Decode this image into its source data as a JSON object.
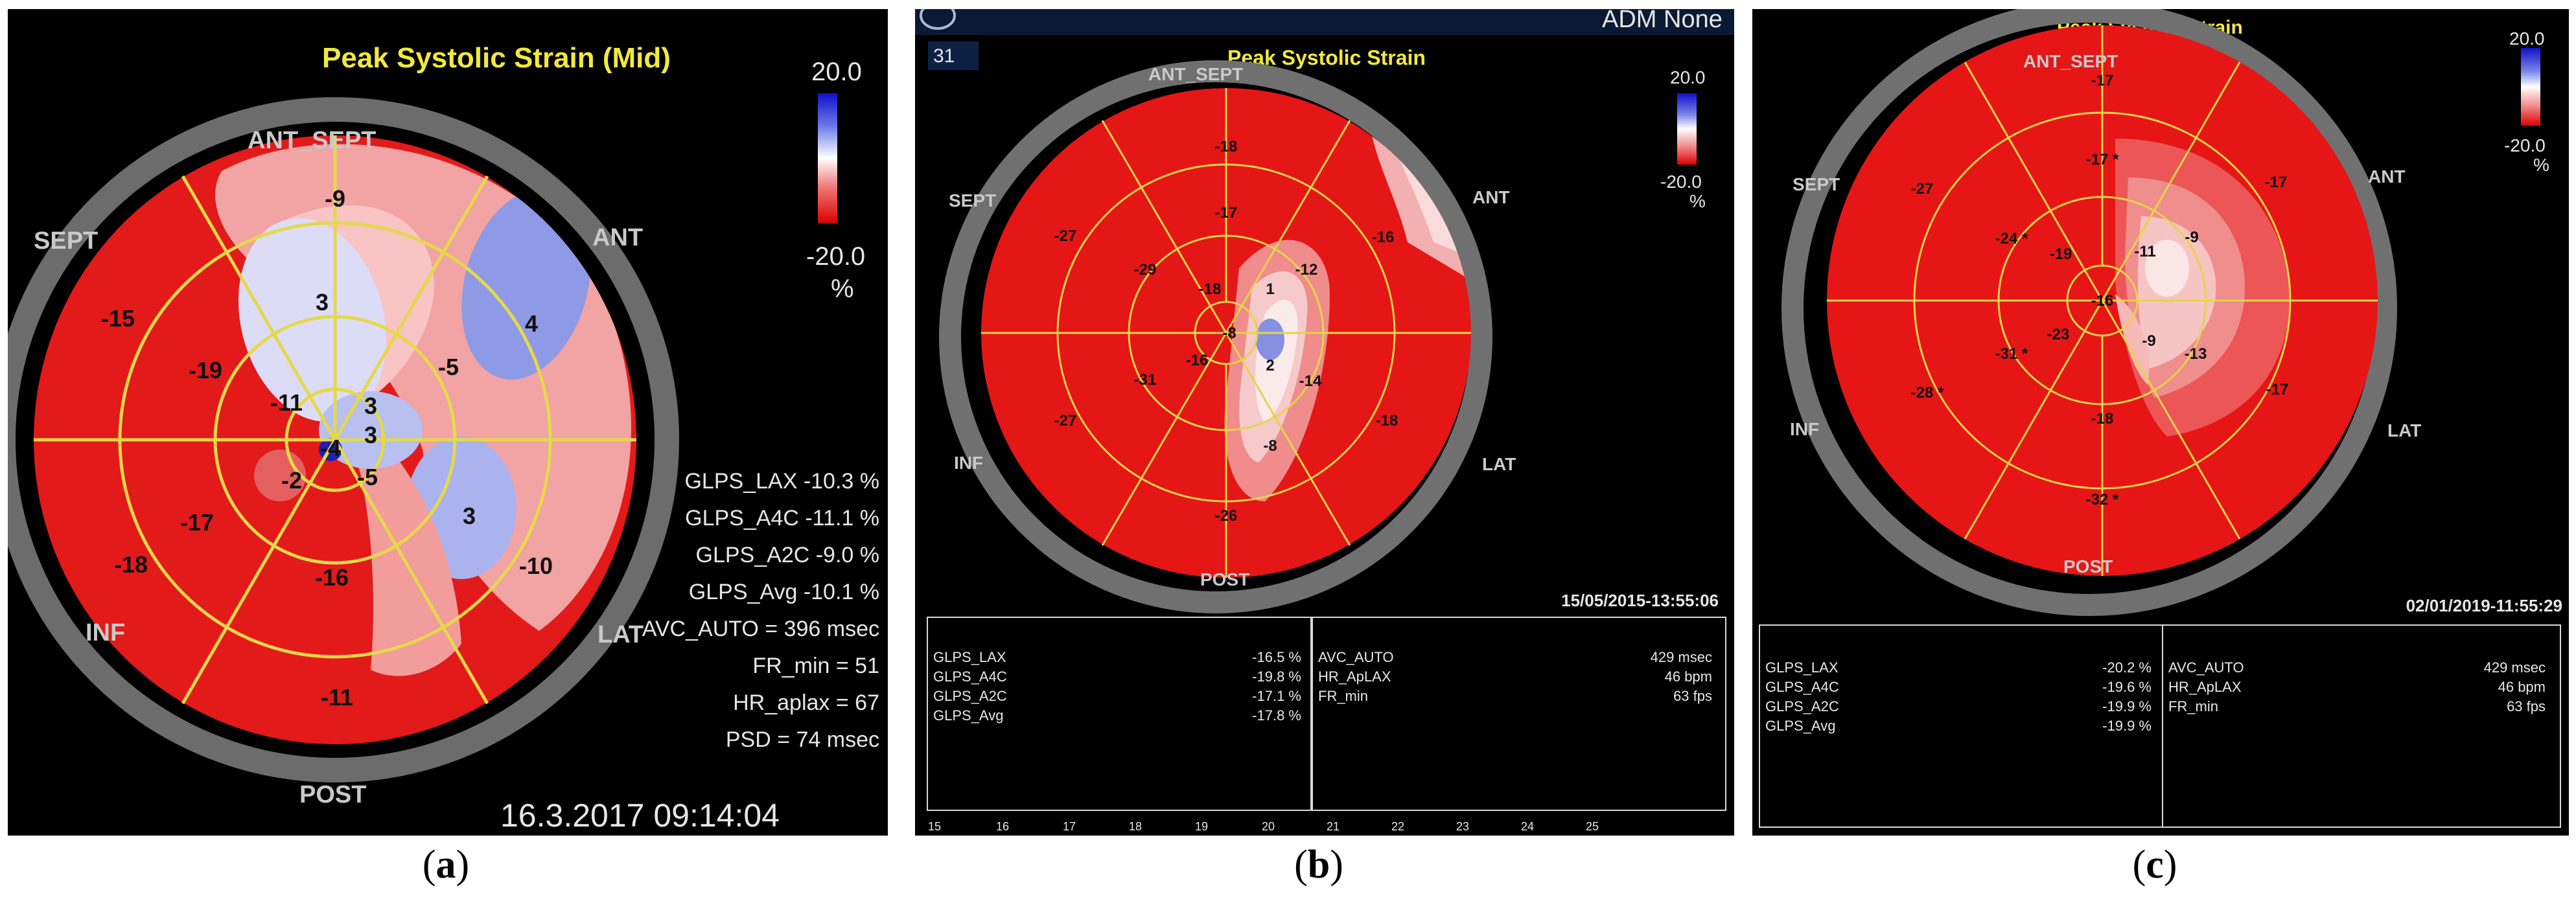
{
  "panels": {
    "a": {
      "caption_letter": "a",
      "title": "Peak Systolic Strain (Mid)",
      "scale_max": "20.0",
      "scale_min": "-20.0",
      "scale_unit": "%",
      "walls": {
        "top": "ANT_SEPT",
        "upper_left": "SEPT",
        "upper_right": "ANT",
        "lower_left": "INF",
        "lower_right": "LAT",
        "bottom": "POST"
      },
      "segments": [
        "-9",
        "4",
        "-10",
        "-11",
        "-18",
        "-15",
        "3",
        "-5",
        "3",
        "-16",
        "-17",
        "-19",
        "3",
        "-5",
        "-2",
        "-11",
        "-4",
        "3"
      ],
      "params": [
        "GLPS_LAX -10.3 %",
        "GLPS_A4C -11.1 %",
        "GLPS_A2C -9.0 %",
        "GLPS_Avg -10.1 %",
        "AVC_AUTO = 396 msec",
        "FR_min = 51",
        "HR_aplax = 67",
        "PSD = 74 msec"
      ],
      "timestamp": "16.3.2017 09:14:04"
    },
    "b": {
      "caption_letter": "b",
      "header_number": "31",
      "header_text": "ADM None",
      "title": "Peak Systolic Strain",
      "scale_max": "20.0",
      "scale_min": "-20.0",
      "scale_unit": "%",
      "walls": {
        "top": "ANT_SEPT",
        "upper_left": "SEPT",
        "upper_right": "ANT",
        "lower_left": "INF",
        "lower_right": "LAT",
        "bottom": "POST"
      },
      "segments": [
        "-18",
        "-16",
        "-18",
        "-26",
        "-27",
        "-27",
        "-17",
        "-12",
        "-14",
        "-8",
        "-31",
        "-29",
        "-18",
        "1",
        "2",
        "-16",
        "-8"
      ],
      "timestamp": "15/05/2015-13:55:06",
      "table_left": [
        {
          "k": "GLPS_LAX",
          "v": "-16.5 %"
        },
        {
          "k": "GLPS_A4C",
          "v": "-19.8 %"
        },
        {
          "k": "GLPS_A2C",
          "v": "-17.1 %"
        },
        {
          "k": "GLPS_Avg",
          "v": "-17.8 %"
        }
      ],
      "table_right": [
        {
          "k": "AVC_AUTO",
          "v": "429 msec"
        },
        {
          "k": "HR_ApLAX",
          "v": "46 bpm"
        },
        {
          "k": "FR_min",
          "v": "63 fps"
        }
      ],
      "ruler_ticks": [
        "15",
        "16",
        "17",
        "18",
        "19",
        "20",
        "21",
        "22",
        "23",
        "24",
        "25"
      ]
    },
    "c": {
      "caption_letter": "c",
      "title": "Peak Systolic Strain",
      "scale_max": "20.0",
      "scale_min": "-20.0",
      "scale_unit": "%",
      "walls": {
        "top": "ANT_SEPT",
        "upper_left": "SEPT",
        "upper_right": "ANT",
        "lower_left": "INF",
        "lower_right": "LAT",
        "bottom": "POST"
      },
      "segments": [
        "-17",
        "-17",
        "-17",
        "-32 *",
        "-28 *",
        "-27",
        "-17 *",
        "-9",
        "-13",
        "-18",
        "-31 *",
        "-24 *",
        "-11",
        "-9",
        "-23",
        "-19",
        "-16"
      ],
      "timestamp": "02/01/2019-11:55:29",
      "table_left": [
        {
          "k": "GLPS_LAX",
          "v": "-20.2 %"
        },
        {
          "k": "GLPS_A4C",
          "v": "-19.6 %"
        },
        {
          "k": "GLPS_A2C",
          "v": "-19.9 %"
        },
        {
          "k": "GLPS_Avg",
          "v": "-19.9 %"
        }
      ],
      "table_right": [
        {
          "k": "AVC_AUTO",
          "v": "429 msec"
        },
        {
          "k": "HR_ApLAX",
          "v": "46 bpm"
        },
        {
          "k": "FR_min",
          "v": "63 fps"
        }
      ]
    }
  }
}
